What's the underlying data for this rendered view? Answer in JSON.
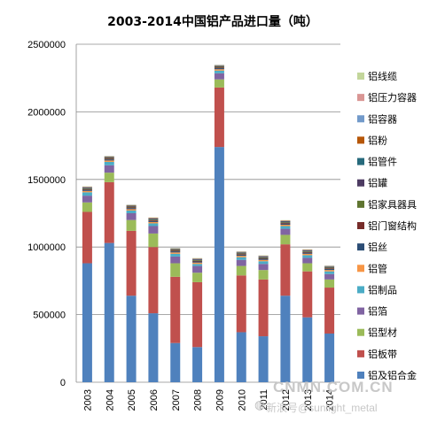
{
  "chart_data": {
    "type": "bar",
    "stacked": true,
    "title": "2003-2014中国铝产品进口量（吨）",
    "xlabel": "",
    "ylabel": "",
    "ylim": [
      0,
      2500000
    ],
    "yticks": [
      "0",
      "500000",
      "1000000",
      "1500000",
      "2000000",
      "2500000"
    ],
    "grid": true,
    "legend_position": "right",
    "categories": [
      "2003",
      "2004",
      "2005",
      "2006",
      "2007",
      "2008",
      "2009",
      "2010",
      "2011",
      "2012",
      "2013",
      "2014"
    ],
    "series": [
      {
        "name": "铝及铝合金",
        "color": "#4f81bd",
        "values": [
          880000,
          1030000,
          640000,
          510000,
          290000,
          260000,
          1740000,
          370000,
          340000,
          640000,
          480000,
          360000
        ]
      },
      {
        "name": "铝板带",
        "color": "#c0504d",
        "values": [
          380000,
          450000,
          480000,
          490000,
          490000,
          480000,
          440000,
          420000,
          420000,
          380000,
          340000,
          340000
        ]
      },
      {
        "name": "铝型材",
        "color": "#9bbb59",
        "values": [
          70000,
          70000,
          80000,
          100000,
          100000,
          70000,
          60000,
          70000,
          70000,
          70000,
          60000,
          60000
        ]
      },
      {
        "name": "铝箔",
        "color": "#8064a2",
        "values": [
          50000,
          55000,
          50000,
          55000,
          50000,
          50000,
          45000,
          45000,
          45000,
          45000,
          40000,
          40000
        ]
      },
      {
        "name": "铝制品",
        "color": "#4bacc6",
        "values": [
          25000,
          25000,
          20000,
          20000,
          20000,
          15000,
          20000,
          20000,
          20000,
          20000,
          20000,
          20000
        ]
      },
      {
        "name": "铝管",
        "color": "#f79646",
        "values": [
          10000,
          10000,
          10000,
          10000,
          10000,
          10000,
          10000,
          10000,
          10000,
          10000,
          10000,
          10000
        ]
      },
      {
        "name": "铝丝",
        "color": "#2c4d75",
        "values": [
          8000,
          8000,
          8000,
          8000,
          8000,
          8000,
          8000,
          8000,
          8000,
          8000,
          8000,
          8000
        ]
      },
      {
        "name": "铝门窗结构",
        "color": "#772c2a",
        "values": [
          5000,
          5000,
          5000,
          5000,
          5000,
          5000,
          5000,
          5000,
          5000,
          5000,
          5000,
          5000
        ]
      },
      {
        "name": "铝家具器具",
        "color": "#5f7530",
        "values": [
          5000,
          5000,
          5000,
          5000,
          5000,
          5000,
          5000,
          5000,
          5000,
          5000,
          5000,
          5000
        ]
      },
      {
        "name": "铝罐",
        "color": "#4d3b62",
        "values": [
          5000,
          5000,
          5000,
          5000,
          5000,
          5000,
          5000,
          5000,
          5000,
          5000,
          5000,
          5000
        ]
      },
      {
        "name": "铝管件",
        "color": "#276a7c",
        "values": [
          3000,
          3000,
          3000,
          3000,
          3000,
          3000,
          3000,
          3000,
          3000,
          3000,
          3000,
          3000
        ]
      },
      {
        "name": "铝粉",
        "color": "#b65708",
        "values": [
          3000,
          3000,
          3000,
          3000,
          3000,
          3000,
          3000,
          3000,
          3000,
          3000,
          3000,
          3000
        ]
      },
      {
        "name": "铝容器",
        "color": "#729aca",
        "values": [
          2000,
          2000,
          2000,
          2000,
          2000,
          2000,
          2000,
          2000,
          2000,
          2000,
          2000,
          2000
        ]
      },
      {
        "name": "铝压力容器",
        "color": "#d99694",
        "values": [
          1000,
          1000,
          1000,
          1000,
          1000,
          1000,
          1000,
          1000,
          1000,
          1000,
          1000,
          1000
        ]
      },
      {
        "name": "铝线缆",
        "color": "#c3d69b",
        "values": [
          2000,
          2000,
          2000,
          2000,
          2000,
          2000,
          2000,
          2000,
          2000,
          2000,
          2000,
          2000
        ]
      }
    ]
  },
  "watermark": {
    "site": "CNMN.COM.CN",
    "account": "新浪号@sunlight_metal",
    "icon": "weibo-logo-icon"
  }
}
